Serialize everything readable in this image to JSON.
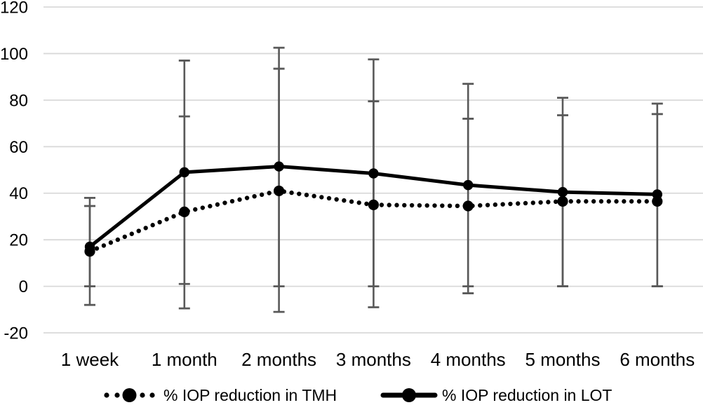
{
  "chart_data": {
    "type": "line",
    "title": "",
    "xlabel": "",
    "ylabel": "",
    "categories": [
      "1 week",
      "1 month",
      "2 months",
      "3 months",
      "4 months",
      "5 months",
      "6 months"
    ],
    "y_axis": {
      "ticks": [
        120,
        100,
        80,
        60,
        40,
        20,
        0,
        -20
      ],
      "ylim": [
        -20,
        120
      ]
    },
    "grid": true,
    "legend_position": "bottom",
    "series": [
      {
        "name": "% IOP reduction in TMH",
        "line_style": "dotted",
        "marker": "circle",
        "color": "#000000",
        "values": [
          15,
          32,
          41,
          35,
          34.5,
          36.5,
          36.5
        ],
        "error_low": [
          -8,
          -9.5,
          -11,
          -9,
          -3,
          0,
          0
        ],
        "error_high": [
          38,
          73,
          93.5,
          79.5,
          72,
          73.5,
          74
        ]
      },
      {
        "name": "% IOP reduction in LOT",
        "line_style": "solid",
        "marker": "circle",
        "color": "#000000",
        "values": [
          17,
          49,
          51.5,
          48.5,
          43.5,
          40.5,
          39.5
        ],
        "error_low": [
          0,
          1,
          0,
          0,
          0,
          0,
          0
        ],
        "error_high": [
          34.5,
          97,
          102.5,
          97.5,
          87,
          81,
          78.5
        ]
      }
    ],
    "colors": {
      "series": "#000000",
      "error_bar": "#595959",
      "gridline": "#d9d9d9",
      "background": "#ffffff",
      "text": "#000000"
    }
  }
}
